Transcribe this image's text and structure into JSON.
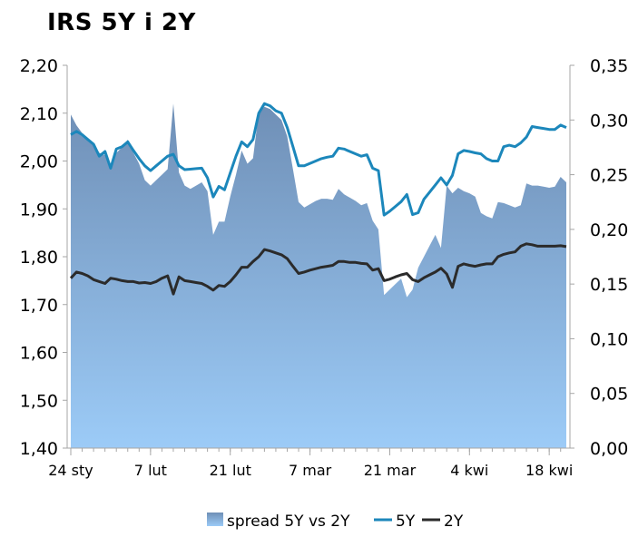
{
  "chart_data": {
    "type": "line",
    "title": "IRS 5Y i 2Y",
    "categories": [
      "24 sty",
      "7 lut",
      "21 lut",
      "7 mar",
      "21 mar",
      "4 kwi",
      "18 kwi"
    ],
    "y_left": {
      "range": [
        1.4,
        2.2
      ],
      "ticks": [
        1.4,
        1.5,
        1.6,
        1.7,
        1.8,
        1.9,
        2.0,
        2.1,
        2.2
      ],
      "tick_labels": [
        "1,40",
        "1,50",
        "1,60",
        "1,70",
        "1,80",
        "1,90",
        "2,00",
        "2,10",
        "2,20"
      ]
    },
    "y_right": {
      "range": [
        0.0,
        0.35
      ],
      "ticks": [
        0.0,
        0.05,
        0.1,
        0.15,
        0.2,
        0.25,
        0.3,
        0.35
      ],
      "tick_labels": [
        "0,00",
        "0,05",
        "0,10",
        "0,15",
        "0,20",
        "0,25",
        "0,30",
        "0,35"
      ]
    },
    "x_range": [
      0,
      87
    ],
    "x_ticks": [
      0,
      14,
      28,
      42,
      56,
      70,
      84
    ],
    "legend": {
      "placement": "bottom",
      "entries": [
        "spread 5Y vs 2Y",
        "5Y",
        "2Y"
      ]
    },
    "colors": {
      "spread_top": "#6f8fb6",
      "spread_bottom": "#9ccbf7",
      "line_5y": "#1c87bb",
      "line_2y": "#2b2b2b",
      "axis": "#a6a6a6"
    },
    "series": [
      {
        "name": "spread 5Y vs 2Y",
        "axis": "right",
        "type": "area",
        "x": [
          0,
          1,
          2,
          3,
          4,
          5,
          6,
          7,
          8,
          9,
          10,
          11,
          12,
          13,
          14,
          15,
          16,
          17,
          18,
          19,
          20,
          21,
          22,
          23,
          24,
          25,
          26,
          27,
          28,
          29,
          30,
          31,
          32,
          33,
          34,
          35,
          36,
          37,
          38,
          39,
          40,
          41,
          42,
          43,
          44,
          45,
          46,
          47,
          48,
          49,
          50,
          51,
          52,
          53,
          54,
          55,
          56,
          57,
          58,
          59,
          60,
          61,
          62,
          63,
          64,
          65,
          66,
          67,
          68,
          69,
          70,
          71,
          72,
          73,
          74,
          75,
          76,
          77,
          78,
          79,
          80,
          81,
          82,
          83,
          84,
          85,
          86,
          87
        ],
        "values": [
          0.305,
          0.295,
          0.288,
          0.283,
          0.278,
          0.27,
          0.268,
          0.255,
          0.27,
          0.275,
          0.282,
          0.27,
          0.26,
          0.245,
          0.24,
          0.245,
          0.25,
          0.255,
          0.315,
          0.252,
          0.24,
          0.237,
          0.24,
          0.243,
          0.235,
          0.195,
          0.207,
          0.207,
          0.23,
          0.25,
          0.272,
          0.26,
          0.265,
          0.307,
          0.312,
          0.31,
          0.305,
          0.3,
          0.285,
          0.255,
          0.225,
          0.22,
          0.223,
          0.226,
          0.228,
          0.228,
          0.227,
          0.237,
          0.232,
          0.229,
          0.226,
          0.222,
          0.224,
          0.208,
          0.2,
          0.14,
          0.145,
          0.15,
          0.155,
          0.138,
          0.145,
          0.165,
          0.175,
          0.185,
          0.195,
          0.183,
          0.24,
          0.233,
          0.238,
          0.235,
          0.233,
          0.23,
          0.215,
          0.212,
          0.21,
          0.225,
          0.224,
          0.222,
          0.22,
          0.222,
          0.242,
          0.24,
          0.24,
          0.239,
          0.238,
          0.239,
          0.248,
          0.243
        ]
      },
      {
        "name": "5Y",
        "axis": "left",
        "x": [
          0,
          1,
          2,
          3,
          4,
          5,
          6,
          7,
          8,
          9,
          10,
          11,
          12,
          13,
          14,
          15,
          16,
          17,
          18,
          19,
          20,
          21,
          22,
          23,
          24,
          25,
          26,
          27,
          28,
          29,
          30,
          31,
          32,
          33,
          34,
          35,
          36,
          37,
          38,
          39,
          40,
          41,
          42,
          43,
          44,
          45,
          46,
          47,
          48,
          49,
          50,
          51,
          52,
          53,
          54,
          55,
          56,
          57,
          58,
          59,
          60,
          61,
          62,
          63,
          64,
          65,
          66,
          67,
          68,
          69,
          70,
          71,
          72,
          73,
          74,
          75,
          76,
          77,
          78,
          79,
          80,
          81,
          82,
          83,
          84,
          85,
          86,
          87
        ],
        "values": [
          2.055,
          2.062,
          2.055,
          2.045,
          2.035,
          2.01,
          2.02,
          1.985,
          2.025,
          2.03,
          2.04,
          2.022,
          2.005,
          1.99,
          1.98,
          1.99,
          2.0,
          2.01,
          2.014,
          1.99,
          1.982,
          1.983,
          1.984,
          1.985,
          1.965,
          1.925,
          1.947,
          1.94,
          1.975,
          2.01,
          2.04,
          2.03,
          2.045,
          2.1,
          2.12,
          2.115,
          2.105,
          2.1,
          2.07,
          2.03,
          1.99,
          1.99,
          1.995,
          2.0,
          2.005,
          2.008,
          2.01,
          2.027,
          2.025,
          2.02,
          2.015,
          2.01,
          2.013,
          1.985,
          1.98,
          1.887,
          1.895,
          1.905,
          1.915,
          1.93,
          1.888,
          1.892,
          1.92,
          1.935,
          1.95,
          1.965,
          1.95,
          1.97,
          2.015,
          2.022,
          2.02,
          2.017,
          2.015,
          2.005,
          2.0,
          2.0,
          2.03,
          2.033,
          2.03,
          2.038,
          2.05,
          2.072,
          2.07,
          2.068,
          2.066,
          2.066,
          2.075,
          2.07
        ]
      },
      {
        "name": "2Y",
        "axis": "left",
        "x": [
          0,
          1,
          2,
          3,
          4,
          5,
          6,
          7,
          8,
          9,
          10,
          11,
          12,
          13,
          14,
          15,
          16,
          17,
          18,
          19,
          20,
          21,
          22,
          23,
          24,
          25,
          26,
          27,
          28,
          29,
          30,
          31,
          32,
          33,
          34,
          35,
          36,
          37,
          38,
          39,
          40,
          41,
          42,
          43,
          44,
          45,
          46,
          47,
          48,
          49,
          50,
          51,
          52,
          53,
          54,
          55,
          56,
          57,
          58,
          59,
          60,
          61,
          62,
          63,
          64,
          65,
          66,
          67,
          68,
          69,
          70,
          71,
          72,
          73,
          74,
          75,
          76,
          77,
          78,
          79,
          80,
          81,
          82,
          83,
          84,
          85,
          86,
          87
        ],
        "values": [
          1.755,
          1.768,
          1.765,
          1.76,
          1.752,
          1.748,
          1.744,
          1.755,
          1.753,
          1.75,
          1.748,
          1.748,
          1.745,
          1.746,
          1.744,
          1.748,
          1.755,
          1.76,
          1.722,
          1.758,
          1.75,
          1.748,
          1.746,
          1.744,
          1.738,
          1.73,
          1.74,
          1.738,
          1.748,
          1.762,
          1.778,
          1.778,
          1.79,
          1.8,
          1.815,
          1.812,
          1.808,
          1.804,
          1.796,
          1.78,
          1.765,
          1.768,
          1.772,
          1.775,
          1.778,
          1.78,
          1.782,
          1.79,
          1.79,
          1.788,
          1.788,
          1.786,
          1.785,
          1.772,
          1.775,
          1.75,
          1.753,
          1.758,
          1.762,
          1.765,
          1.752,
          1.748,
          1.756,
          1.762,
          1.768,
          1.776,
          1.764,
          1.736,
          1.78,
          1.785,
          1.782,
          1.78,
          1.783,
          1.785,
          1.785,
          1.8,
          1.805,
          1.808,
          1.81,
          1.822,
          1.827,
          1.825,
          1.822,
          1.822,
          1.822,
          1.822,
          1.823,
          1.821
        ]
      }
    ]
  }
}
